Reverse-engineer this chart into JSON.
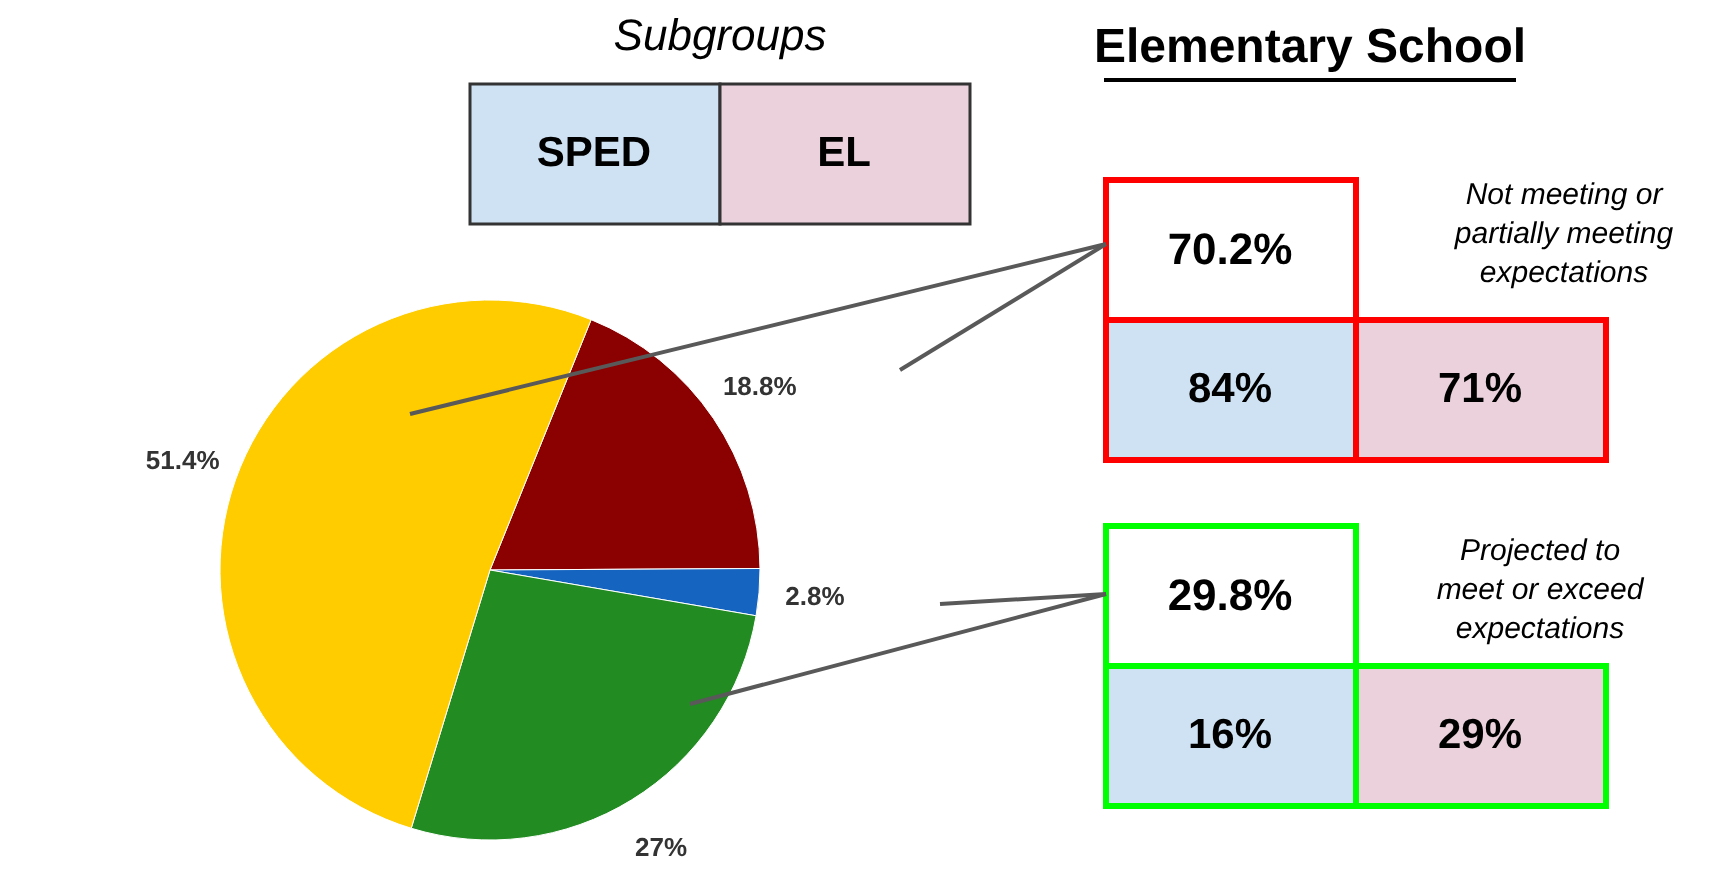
{
  "chart_data": {
    "type": "pie",
    "title": "Elementary School",
    "categories": [
      null,
      null,
      null,
      null
    ],
    "values": [
      18.8,
      2.8,
      27,
      51.4
    ],
    "colors": [
      "#8b0000",
      "#1565c0",
      "#228b22",
      "#ffcc00"
    ],
    "value_labels": [
      "18.8%",
      "2.8%",
      "27%",
      "51.4%"
    ],
    "annotations": [
      "Subgroups",
      "SPED",
      "EL",
      "70.2%",
      "Not meeting or\npartially meeting\nexpectations",
      "84%",
      "71%",
      "29.8%",
      "Projected to\nmeet or exceed\nexpectations",
      "16%",
      "29%"
    ]
  }
}
